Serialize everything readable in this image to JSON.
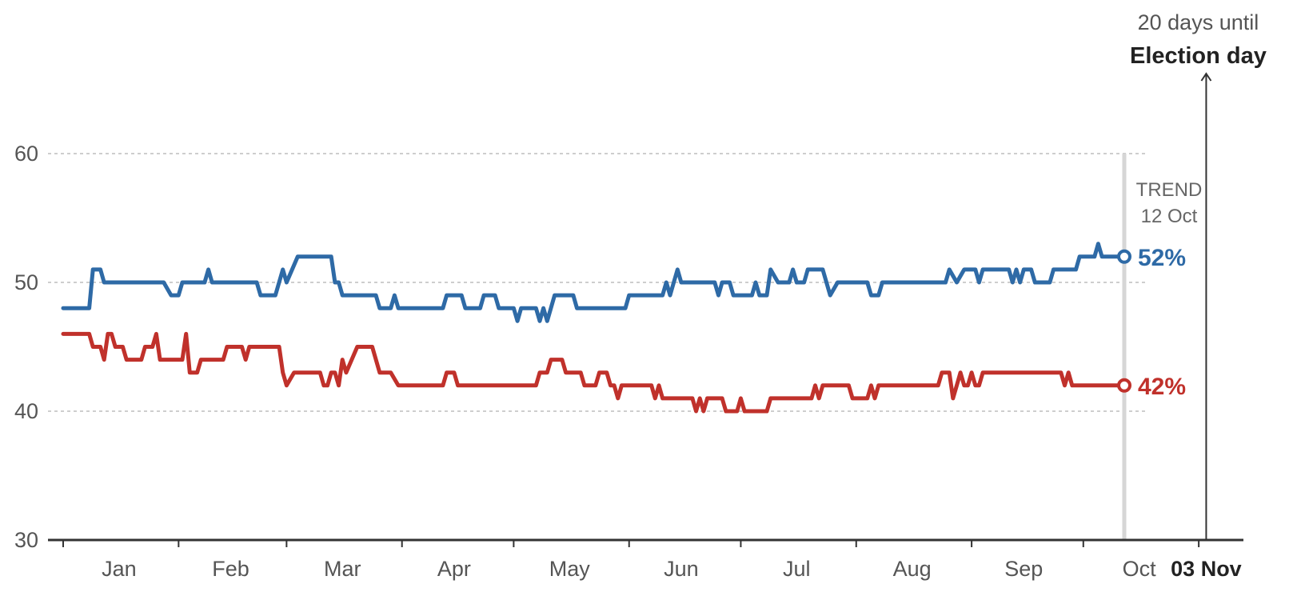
{
  "chart_data": {
    "type": "line",
    "y_ticks": [
      30,
      40,
      50,
      60
    ],
    "ylim": [
      30,
      60
    ],
    "xlim": [
      "2020-01-01",
      "2020-11-13"
    ],
    "x_ticks": [
      {
        "date": "2020-01-01"
      },
      {
        "date": "2020-02-01"
      },
      {
        "date": "2020-03-01"
      },
      {
        "date": "2020-04-01"
      },
      {
        "date": "2020-05-01"
      },
      {
        "date": "2020-06-01"
      },
      {
        "date": "2020-07-01"
      },
      {
        "date": "2020-08-01"
      },
      {
        "date": "2020-09-01"
      },
      {
        "date": "2020-10-01"
      },
      {
        "date": "2020-11-01"
      }
    ],
    "x_tick_labels": [
      {
        "label": "Jan",
        "date": "2020-01-16"
      },
      {
        "label": "Feb",
        "date": "2020-02-15"
      },
      {
        "label": "Mar",
        "date": "2020-03-16"
      },
      {
        "label": "Apr",
        "date": "2020-04-15"
      },
      {
        "label": "May",
        "date": "2020-05-16"
      },
      {
        "label": "Jun",
        "date": "2020-06-15"
      },
      {
        "label": "Jul",
        "date": "2020-07-16"
      },
      {
        "label": "Aug",
        "date": "2020-08-16"
      },
      {
        "label": "Sep",
        "date": "2020-09-15"
      },
      {
        "label": "Oct",
        "date": "2020-10-16"
      },
      {
        "label": "03 Nov",
        "date": "2020-11-03",
        "bold": true
      }
    ],
    "trend": {
      "date": "2020-10-12",
      "label_line1": "TREND",
      "label_line2": "12 Oct"
    },
    "election": {
      "date": "2020-11-03",
      "line1": "20 days until",
      "line2": "Election day"
    },
    "series": [
      {
        "color": "#2e6aa6",
        "end_label": "52%",
        "points": [
          [
            "2020-01-01",
            48
          ],
          [
            "2020-01-08",
            48
          ],
          [
            "2020-01-09",
            51
          ],
          [
            "2020-01-11",
            51
          ],
          [
            "2020-01-12",
            50
          ],
          [
            "2020-01-28",
            50
          ],
          [
            "2020-01-30",
            49
          ],
          [
            "2020-02-01",
            49
          ],
          [
            "2020-02-02",
            50
          ],
          [
            "2020-02-08",
            50
          ],
          [
            "2020-02-09",
            51
          ],
          [
            "2020-02-10",
            50
          ],
          [
            "2020-02-22",
            50
          ],
          [
            "2020-02-23",
            49
          ],
          [
            "2020-02-27",
            49
          ],
          [
            "2020-02-29",
            51
          ],
          [
            "2020-03-01",
            50
          ],
          [
            "2020-03-04",
            52
          ],
          [
            "2020-03-13",
            52
          ],
          [
            "2020-03-14",
            50
          ],
          [
            "2020-03-15",
            50
          ],
          [
            "2020-03-16",
            49
          ],
          [
            "2020-03-25",
            49
          ],
          [
            "2020-03-26",
            48
          ],
          [
            "2020-03-29",
            48
          ],
          [
            "2020-03-30",
            49
          ],
          [
            "2020-03-31",
            48
          ],
          [
            "2020-04-12",
            48
          ],
          [
            "2020-04-13",
            49
          ],
          [
            "2020-04-17",
            49
          ],
          [
            "2020-04-18",
            48
          ],
          [
            "2020-04-22",
            48
          ],
          [
            "2020-04-23",
            49
          ],
          [
            "2020-04-26",
            49
          ],
          [
            "2020-04-27",
            48
          ],
          [
            "2020-05-01",
            48
          ],
          [
            "2020-05-02",
            47
          ],
          [
            "2020-05-03",
            48
          ],
          [
            "2020-05-07",
            48
          ],
          [
            "2020-05-08",
            47
          ],
          [
            "2020-05-09",
            48
          ],
          [
            "2020-05-10",
            47
          ],
          [
            "2020-05-12",
            49
          ],
          [
            "2020-05-17",
            49
          ],
          [
            "2020-05-18",
            48
          ],
          [
            "2020-05-31",
            48
          ],
          [
            "2020-06-01",
            49
          ],
          [
            "2020-06-10",
            49
          ],
          [
            "2020-06-11",
            50
          ],
          [
            "2020-06-12",
            49
          ],
          [
            "2020-06-13",
            50
          ],
          [
            "2020-06-14",
            51
          ],
          [
            "2020-06-15",
            50
          ],
          [
            "2020-06-24",
            50
          ],
          [
            "2020-06-25",
            49
          ],
          [
            "2020-06-26",
            50
          ],
          [
            "2020-06-28",
            50
          ],
          [
            "2020-06-29",
            49
          ],
          [
            "2020-07-04",
            49
          ],
          [
            "2020-07-05",
            50
          ],
          [
            "2020-07-06",
            49
          ],
          [
            "2020-07-08",
            49
          ],
          [
            "2020-07-09",
            51
          ],
          [
            "2020-07-11",
            50
          ],
          [
            "2020-07-14",
            50
          ],
          [
            "2020-07-15",
            51
          ],
          [
            "2020-07-16",
            50
          ],
          [
            "2020-07-18",
            50
          ],
          [
            "2020-07-19",
            51
          ],
          [
            "2020-07-23",
            51
          ],
          [
            "2020-07-25",
            49
          ],
          [
            "2020-07-27",
            50
          ],
          [
            "2020-08-04",
            50
          ],
          [
            "2020-08-05",
            49
          ],
          [
            "2020-08-07",
            49
          ],
          [
            "2020-08-08",
            50
          ],
          [
            "2020-08-25",
            50
          ],
          [
            "2020-08-26",
            51
          ],
          [
            "2020-08-28",
            50
          ],
          [
            "2020-08-30",
            51
          ],
          [
            "2020-09-02",
            51
          ],
          [
            "2020-09-03",
            50
          ],
          [
            "2020-09-04",
            51
          ],
          [
            "2020-09-11",
            51
          ],
          [
            "2020-09-12",
            50
          ],
          [
            "2020-09-13",
            51
          ],
          [
            "2020-09-14",
            50
          ],
          [
            "2020-09-15",
            51
          ],
          [
            "2020-09-17",
            51
          ],
          [
            "2020-09-18",
            50
          ],
          [
            "2020-09-22",
            50
          ],
          [
            "2020-09-23",
            51
          ],
          [
            "2020-09-29",
            51
          ],
          [
            "2020-09-30",
            52
          ],
          [
            "2020-10-04",
            52
          ],
          [
            "2020-10-05",
            53
          ],
          [
            "2020-10-06",
            52
          ],
          [
            "2020-10-12",
            52
          ]
        ]
      },
      {
        "color": "#c0312b",
        "end_label": "42%",
        "points": [
          [
            "2020-01-01",
            46
          ],
          [
            "2020-01-08",
            46
          ],
          [
            "2020-01-09",
            45
          ],
          [
            "2020-01-11",
            45
          ],
          [
            "2020-01-12",
            44
          ],
          [
            "2020-01-13",
            46
          ],
          [
            "2020-01-14",
            46
          ],
          [
            "2020-01-15",
            45
          ],
          [
            "2020-01-17",
            45
          ],
          [
            "2020-01-18",
            44
          ],
          [
            "2020-01-22",
            44
          ],
          [
            "2020-01-23",
            45
          ],
          [
            "2020-01-25",
            45
          ],
          [
            "2020-01-26",
            46
          ],
          [
            "2020-01-27",
            44
          ],
          [
            "2020-02-02",
            44
          ],
          [
            "2020-02-03",
            46
          ],
          [
            "2020-02-04",
            43
          ],
          [
            "2020-02-06",
            43
          ],
          [
            "2020-02-07",
            44
          ],
          [
            "2020-02-13",
            44
          ],
          [
            "2020-02-14",
            45
          ],
          [
            "2020-02-18",
            45
          ],
          [
            "2020-02-19",
            44
          ],
          [
            "2020-02-20",
            45
          ],
          [
            "2020-02-28",
            45
          ],
          [
            "2020-02-29",
            43
          ],
          [
            "2020-03-01",
            42
          ],
          [
            "2020-03-03",
            43
          ],
          [
            "2020-03-10",
            43
          ],
          [
            "2020-03-11",
            42
          ],
          [
            "2020-03-12",
            42
          ],
          [
            "2020-03-13",
            43
          ],
          [
            "2020-03-14",
            43
          ],
          [
            "2020-03-15",
            42
          ],
          [
            "2020-03-16",
            44
          ],
          [
            "2020-03-17",
            43
          ],
          [
            "2020-03-20",
            45
          ],
          [
            "2020-03-24",
            45
          ],
          [
            "2020-03-26",
            43
          ],
          [
            "2020-03-29",
            43
          ],
          [
            "2020-03-31",
            42
          ],
          [
            "2020-04-12",
            42
          ],
          [
            "2020-04-13",
            43
          ],
          [
            "2020-04-15",
            43
          ],
          [
            "2020-04-16",
            42
          ],
          [
            "2020-05-07",
            42
          ],
          [
            "2020-05-08",
            43
          ],
          [
            "2020-05-10",
            43
          ],
          [
            "2020-05-11",
            44
          ],
          [
            "2020-05-14",
            44
          ],
          [
            "2020-05-15",
            43
          ],
          [
            "2020-05-19",
            43
          ],
          [
            "2020-05-20",
            42
          ],
          [
            "2020-05-23",
            42
          ],
          [
            "2020-05-24",
            43
          ],
          [
            "2020-05-26",
            43
          ],
          [
            "2020-05-27",
            42
          ],
          [
            "2020-05-28",
            42
          ],
          [
            "2020-05-29",
            41
          ],
          [
            "2020-05-30",
            42
          ],
          [
            "2020-06-07",
            42
          ],
          [
            "2020-06-08",
            41
          ],
          [
            "2020-06-09",
            42
          ],
          [
            "2020-06-10",
            41
          ],
          [
            "2020-06-18",
            41
          ],
          [
            "2020-06-19",
            40
          ],
          [
            "2020-06-20",
            41
          ],
          [
            "2020-06-21",
            40
          ],
          [
            "2020-06-22",
            41
          ],
          [
            "2020-06-26",
            41
          ],
          [
            "2020-06-27",
            40
          ],
          [
            "2020-06-30",
            40
          ],
          [
            "2020-07-01",
            41
          ],
          [
            "2020-07-02",
            40
          ],
          [
            "2020-07-08",
            40
          ],
          [
            "2020-07-09",
            41
          ],
          [
            "2020-07-20",
            41
          ],
          [
            "2020-07-21",
            42
          ],
          [
            "2020-07-22",
            41
          ],
          [
            "2020-07-23",
            42
          ],
          [
            "2020-07-30",
            42
          ],
          [
            "2020-07-31",
            41
          ],
          [
            "2020-08-04",
            41
          ],
          [
            "2020-08-05",
            42
          ],
          [
            "2020-08-06",
            41
          ],
          [
            "2020-08-07",
            42
          ],
          [
            "2020-08-23",
            42
          ],
          [
            "2020-08-24",
            43
          ],
          [
            "2020-08-26",
            43
          ],
          [
            "2020-08-27",
            41
          ],
          [
            "2020-08-28",
            42
          ],
          [
            "2020-08-29",
            43
          ],
          [
            "2020-08-30",
            42
          ],
          [
            "2020-08-31",
            42
          ],
          [
            "2020-09-01",
            43
          ],
          [
            "2020-09-02",
            42
          ],
          [
            "2020-09-03",
            42
          ],
          [
            "2020-09-04",
            43
          ],
          [
            "2020-09-25",
            43
          ],
          [
            "2020-09-26",
            42
          ],
          [
            "2020-09-27",
            43
          ],
          [
            "2020-09-28",
            42
          ],
          [
            "2020-10-12",
            42
          ]
        ]
      }
    ]
  }
}
